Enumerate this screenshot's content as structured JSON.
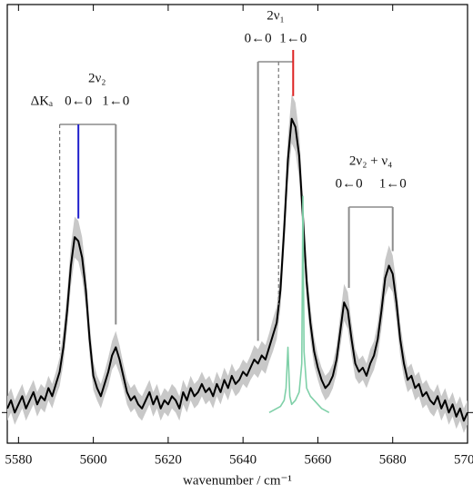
{
  "chart_data": {
    "type": "line",
    "x_label": "wavenumber / cm⁻¹",
    "xlim": [
      5577,
      5700
    ],
    "xticks": [
      5580,
      5600,
      5620,
      5640,
      5660,
      5680,
      5700
    ],
    "ylim": [
      -0.075,
      1.0
    ],
    "yticks": [
      0
    ],
    "x": [
      5577,
      5578,
      5579,
      5580,
      5581,
      5582,
      5583,
      5584,
      5585,
      5586,
      5587,
      5588,
      5589,
      5590,
      5591,
      5592,
      5593,
      5594,
      5595,
      5596,
      5597,
      5598,
      5599,
      5600,
      5601,
      5602,
      5603,
      5604,
      5605,
      5606,
      5607,
      5608,
      5609,
      5610,
      5611,
      5612,
      5613,
      5614,
      5615,
      5616,
      5617,
      5618,
      5619,
      5620,
      5621,
      5622,
      5623,
      5624,
      5625,
      5626,
      5627,
      5628,
      5629,
      5630,
      5631,
      5632,
      5633,
      5634,
      5635,
      5636,
      5637,
      5638,
      5639,
      5640,
      5641,
      5642,
      5643,
      5644,
      5645,
      5646,
      5647,
      5648,
      5649,
      5650,
      5651,
      5652,
      5653,
      5654,
      5655,
      5656,
      5657,
      5658,
      5659,
      5660,
      5661,
      5662,
      5663,
      5664,
      5665,
      5666,
      5667,
      5668,
      5669,
      5670,
      5671,
      5672,
      5673,
      5674,
      5675,
      5676,
      5677,
      5678,
      5679,
      5680,
      5681,
      5682,
      5683,
      5684,
      5685,
      5686,
      5687,
      5688,
      5689,
      5690,
      5691,
      5692,
      5693,
      5694,
      5695,
      5696,
      5697,
      5698,
      5699,
      5700
    ],
    "series": [
      {
        "color": "#000000",
        "band_color": "#c8c8c8",
        "values": [
          0.01,
          0.03,
          0.0,
          0.02,
          0.04,
          0.01,
          0.03,
          0.05,
          0.02,
          0.04,
          0.03,
          0.06,
          0.04,
          0.07,
          0.1,
          0.16,
          0.25,
          0.36,
          0.43,
          0.42,
          0.38,
          0.3,
          0.18,
          0.09,
          0.06,
          0.04,
          0.07,
          0.1,
          0.14,
          0.16,
          0.13,
          0.09,
          0.05,
          0.03,
          0.04,
          0.02,
          0.01,
          0.03,
          0.05,
          0.02,
          0.04,
          0.01,
          0.03,
          0.02,
          0.04,
          0.03,
          0.01,
          0.05,
          0.03,
          0.06,
          0.04,
          0.05,
          0.07,
          0.05,
          0.06,
          0.04,
          0.07,
          0.05,
          0.08,
          0.06,
          0.09,
          0.07,
          0.08,
          0.1,
          0.09,
          0.11,
          0.13,
          0.12,
          0.14,
          0.13,
          0.16,
          0.19,
          0.22,
          0.3,
          0.45,
          0.62,
          0.72,
          0.7,
          0.63,
          0.48,
          0.32,
          0.22,
          0.15,
          0.11,
          0.08,
          0.06,
          0.07,
          0.09,
          0.13,
          0.2,
          0.27,
          0.25,
          0.18,
          0.12,
          0.1,
          0.11,
          0.09,
          0.12,
          0.14,
          0.18,
          0.25,
          0.33,
          0.36,
          0.34,
          0.27,
          0.18,
          0.12,
          0.08,
          0.09,
          0.06,
          0.07,
          0.04,
          0.05,
          0.03,
          0.02,
          0.04,
          0.01,
          0.03,
          0.0,
          0.02,
          -0.01,
          0.01,
          -0.02,
          0.0
        ],
        "errors": [
          0.03,
          0.03,
          0.03,
          0.03,
          0.03,
          0.03,
          0.03,
          0.03,
          0.03,
          0.03,
          0.03,
          0.03,
          0.03,
          0.03,
          0.035,
          0.04,
          0.045,
          0.05,
          0.05,
          0.05,
          0.05,
          0.045,
          0.04,
          0.035,
          0.03,
          0.03,
          0.03,
          0.035,
          0.035,
          0.04,
          0.035,
          0.03,
          0.03,
          0.03,
          0.03,
          0.03,
          0.03,
          0.03,
          0.03,
          0.03,
          0.03,
          0.03,
          0.03,
          0.03,
          0.03,
          0.03,
          0.03,
          0.03,
          0.03,
          0.03,
          0.03,
          0.03,
          0.03,
          0.03,
          0.03,
          0.03,
          0.03,
          0.03,
          0.03,
          0.03,
          0.03,
          0.03,
          0.03,
          0.03,
          0.03,
          0.03,
          0.035,
          0.035,
          0.035,
          0.035,
          0.035,
          0.04,
          0.04,
          0.045,
          0.05,
          0.055,
          0.06,
          0.06,
          0.055,
          0.05,
          0.045,
          0.04,
          0.035,
          0.03,
          0.03,
          0.03,
          0.03,
          0.03,
          0.035,
          0.04,
          0.045,
          0.045,
          0.04,
          0.035,
          0.03,
          0.03,
          0.03,
          0.035,
          0.035,
          0.04,
          0.045,
          0.045,
          0.05,
          0.045,
          0.045,
          0.04,
          0.035,
          0.03,
          0.03,
          0.03,
          0.03,
          0.03,
          0.03,
          0.03,
          0.03,
          0.03,
          0.03,
          0.03,
          0.03,
          0.03,
          0.03,
          0.03,
          0.03,
          0.03
        ]
      },
      {
        "color": "#7fd0a8",
        "x": [
          5647,
          5648,
          5649,
          5650,
          5651,
          5651.5,
          5652,
          5652.5,
          5653,
          5654,
          5655,
          5655.7,
          5656,
          5656.3,
          5657,
          5658,
          5659,
          5660,
          5661,
          5662,
          5663
        ],
        "values": [
          0,
          0.005,
          0.01,
          0.015,
          0.03,
          0.06,
          0.16,
          0.04,
          0.02,
          0.03,
          0.05,
          0.12,
          0.53,
          0.15,
          0.06,
          0.04,
          0.03,
          0.02,
          0.01,
          0.005,
          0
        ]
      }
    ],
    "bands": [
      {
        "label": "2ν₂",
        "delta_label": "ΔKₐ",
        "dashed_x": 5591,
        "transitions": [
          {
            "label": "0←0",
            "x": 5596,
            "color": "#2020cc"
          },
          {
            "label": "1←0",
            "x": 5606,
            "color": "#8c8c8c"
          }
        ]
      },
      {
        "label": "2ν₁",
        "dashed_x": 5649.5,
        "transitions": [
          {
            "label": "0←0",
            "x": 5644,
            "color": "#8c8c8c"
          },
          {
            "label": "1←0",
            "x": 5653.4,
            "color": "#dd2222"
          }
        ]
      },
      {
        "label": "2ν₂ + ν₄",
        "transitions": [
          {
            "label": "0←0",
            "x": 5668.3,
            "color": "#8c8c8c"
          },
          {
            "label": "1←0",
            "x": 5680,
            "color": "#8c8c8c"
          }
        ]
      }
    ]
  }
}
